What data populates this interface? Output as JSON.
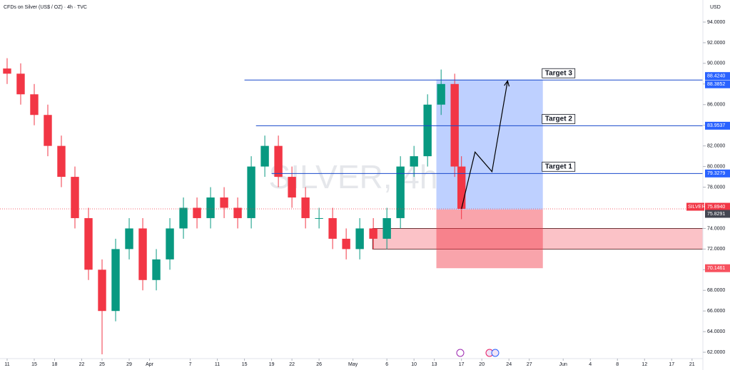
{
  "chart_data": {
    "type": "candlestick",
    "title": "CFDs on Silver (US$ / OZ) · 4h · TVC",
    "currency": "USD",
    "watermark": "SILVER, 4h",
    "x": [
      0,
      2,
      4,
      6,
      8,
      10,
      12,
      14,
      16,
      18,
      20,
      22,
      24,
      26,
      28,
      30,
      32,
      34,
      36,
      38,
      40,
      42,
      44,
      46,
      48,
      50,
      52,
      54,
      56,
      58,
      60,
      62,
      64,
      66,
      67
    ],
    "open": [
      89.5,
      89,
      87,
      85,
      82,
      79,
      75,
      70,
      66,
      72,
      74,
      69,
      71,
      74,
      76,
      75,
      77,
      76,
      75,
      80,
      82,
      79,
      77,
      75,
      75,
      73,
      72,
      74,
      73,
      75,
      80,
      81,
      86,
      88,
      80
    ],
    "high": [
      90.5,
      90,
      88,
      86,
      83,
      80,
      76,
      71,
      73,
      75,
      75,
      72,
      75,
      77,
      77,
      78,
      78,
      77,
      81,
      83,
      83,
      80,
      78,
      76,
      76,
      74,
      75,
      75,
      76,
      81,
      82,
      87,
      89.4,
      89,
      81
    ],
    "low": [
      88,
      86,
      84,
      81,
      78,
      74,
      69,
      61.8,
      65,
      71,
      68,
      68,
      70,
      73,
      74,
      74,
      75,
      74,
      74,
      79,
      78,
      76,
      74,
      74,
      72,
      71,
      71,
      72,
      72,
      74,
      79,
      80,
      85,
      79,
      74.9
    ],
    "close": [
      89,
      87,
      85,
      82,
      79,
      75,
      70,
      66,
      72,
      74,
      69,
      71,
      74,
      76,
      75,
      77,
      76,
      75,
      80,
      82,
      79,
      77,
      75,
      75,
      73,
      72,
      74,
      73,
      75,
      80,
      81,
      86,
      88,
      80,
      75.9
    ],
    "up_color": "#089981",
    "down_color": "#f23645",
    "xlim": [
      -1.05,
      102.6
    ],
    "ylim": [
      61.04,
      96.14
    ],
    "xticks": [
      {
        "value": 0,
        "label": "11"
      },
      {
        "value": 4,
        "label": "15"
      },
      {
        "value": 7,
        "label": "18"
      },
      {
        "value": 11,
        "label": "22"
      },
      {
        "value": 14,
        "label": "25"
      },
      {
        "value": 18,
        "label": "29"
      },
      {
        "value": 21,
        "label": "Apr"
      },
      {
        "value": 27,
        "label": "7"
      },
      {
        "value": 31,
        "label": "11"
      },
      {
        "value": 35,
        "label": "15"
      },
      {
        "value": 39,
        "label": "19"
      },
      {
        "value": 42,
        "label": "22"
      },
      {
        "value": 46,
        "label": "26"
      },
      {
        "value": 51,
        "label": "May"
      },
      {
        "value": 56,
        "label": "6"
      },
      {
        "value": 60,
        "label": "10"
      },
      {
        "value": 63,
        "label": "13"
      },
      {
        "value": 67,
        "label": "17"
      },
      {
        "value": 70,
        "label": "20"
      },
      {
        "value": 74,
        "label": "24"
      },
      {
        "value": 77,
        "label": "27"
      },
      {
        "value": 82,
        "label": "Jun"
      },
      {
        "value": 86,
        "label": "4"
      },
      {
        "value": 90,
        "label": "8"
      },
      {
        "value": 94,
        "label": "12"
      },
      {
        "value": 98,
        "label": "17"
      },
      {
        "value": 101,
        "label": "21"
      }
    ],
    "yticks": [
      {
        "value": 62,
        "label": "62.0000"
      },
      {
        "value": 64,
        "label": "64.0000"
      },
      {
        "value": 66,
        "label": "66.0000"
      },
      {
        "value": 68,
        "label": "68.0000"
      },
      {
        "value": 70,
        "label": "70.0000"
      },
      {
        "value": 72,
        "label": "72.0000"
      },
      {
        "value": 74,
        "label": "74.0000"
      },
      {
        "value": 76,
        "label": "76.0000"
      },
      {
        "value": 78,
        "label": "78.0000"
      },
      {
        "value": 80,
        "label": "80.0000"
      },
      {
        "value": 82,
        "label": "82.0000"
      },
      {
        "value": 84,
        "label": "84.0000"
      },
      {
        "value": 86,
        "label": "86.0000"
      },
      {
        "value": 88,
        "label": "88.0000"
      },
      {
        "value": 90,
        "label": "90.0000"
      },
      {
        "value": 92,
        "label": "92.0000"
      },
      {
        "value": 94,
        "label": "94.0000"
      }
    ],
    "targets": [
      {
        "name": "Target 3",
        "value": 88.3852,
        "label": "88.3852",
        "start": 35
      },
      {
        "name": "Target 2",
        "value": 83.9537,
        "label": "83.9537",
        "start": 36.7
      },
      {
        "name": "Target 1",
        "value": 79.3279,
        "label": "79.3279",
        "start": 39
      }
    ],
    "take_profit": {
      "from": 75.8291,
      "to": {
        "value": 88.424,
        "label": "88.4240"
      },
      "start": 63.3,
      "end": 79
    },
    "stop": {
      "from": 75.8291,
      "to": {
        "value": 70.1461,
        "label": "70.1461"
      }
    },
    "entry": {
      "value": 75.8291,
      "label": "75.8291"
    },
    "last_price": {
      "name": "SILVER",
      "value": 75.894,
      "label": "75.8940"
    },
    "support_zone": {
      "low": 72,
      "high": 74,
      "start": 53.9
    },
    "projection": [
      [
        67,
        75.9
      ],
      [
        69,
        81.4
      ],
      [
        71.5,
        79.5
      ],
      [
        73.8,
        88.3
      ]
    ]
  }
}
